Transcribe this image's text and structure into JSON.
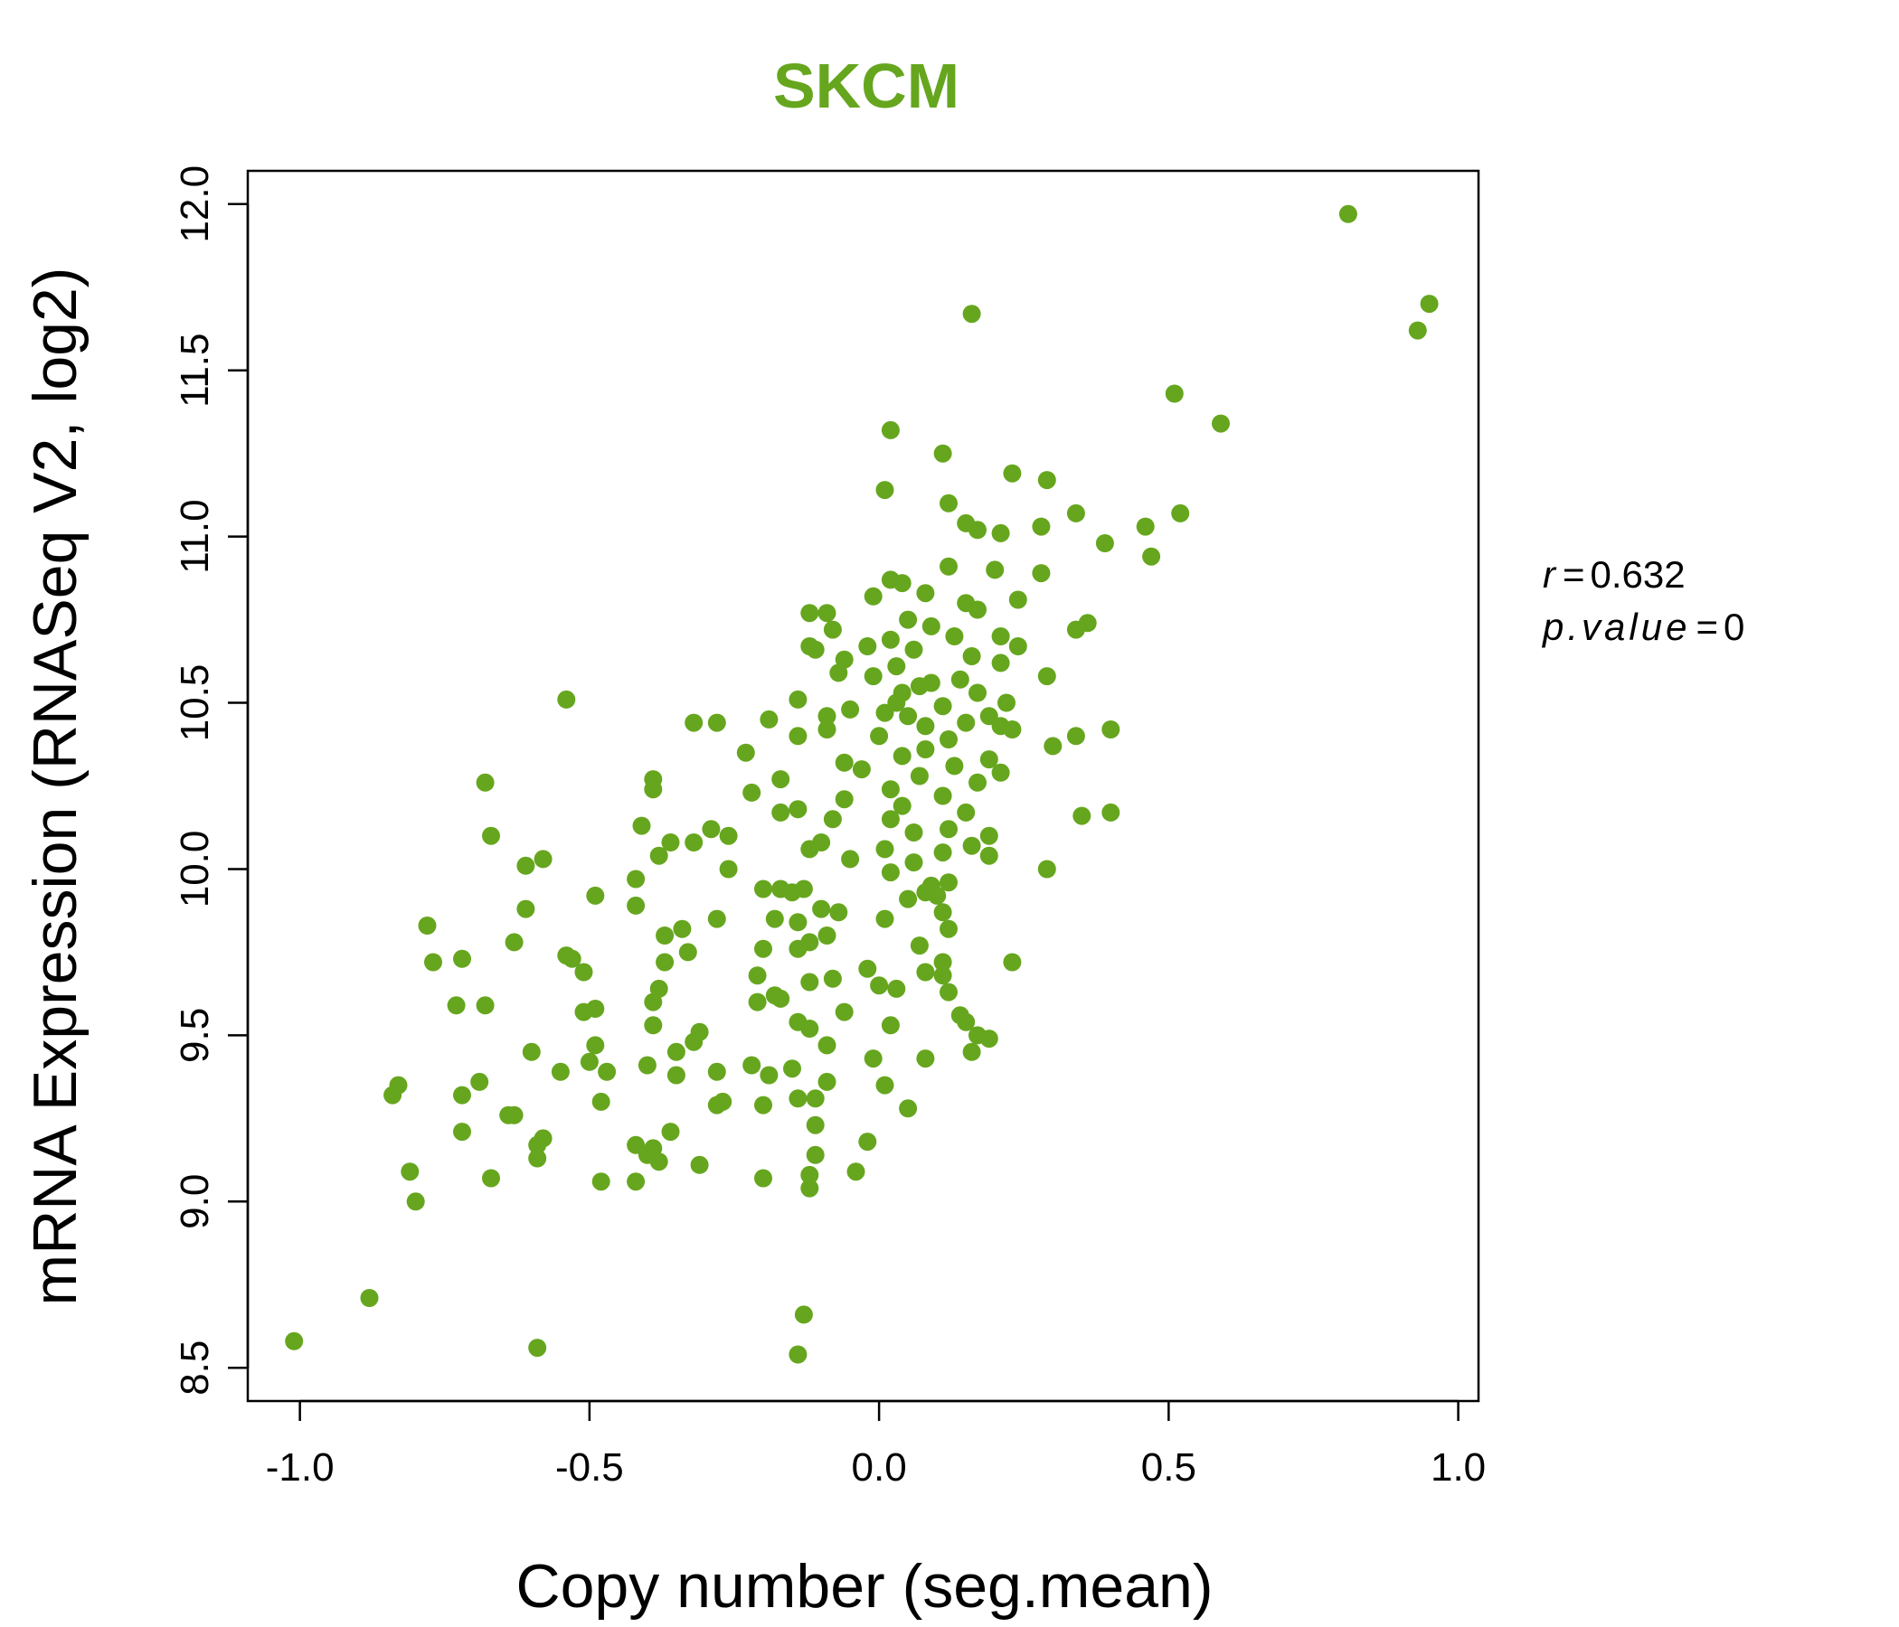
{
  "accent_color": "#66a61e",
  "chart_data": {
    "type": "scatter",
    "title": "SKCM",
    "xlabel": "Copy number (seg.mean)",
    "ylabel": "mRNA Expression (RNASeq V2, log2)",
    "xlim": [
      -1.09,
      1.035
    ],
    "ylim": [
      8.4,
      12.1
    ],
    "xticks": [
      -1.0,
      -0.5,
      0.0,
      0.5,
      1.0
    ],
    "xtick_labels": [
      "-1.0",
      "-0.5",
      "0.0",
      "0.5",
      "1.0"
    ],
    "yticks": [
      8.5,
      9.0,
      9.5,
      10.0,
      10.5,
      11.0,
      11.5,
      12.0
    ],
    "ytick_labels": [
      "8.5",
      "9.0",
      "9.5",
      "10.0",
      "10.5",
      "11.0",
      "11.5",
      "12.0"
    ],
    "grid": false,
    "marker_color": "#66a61e",
    "annotation": {
      "r_label": "r",
      "r_value": "0.632",
      "p_label": "p.value",
      "p_value": "0"
    },
    "points": [
      [
        -1.01,
        8.58
      ],
      [
        -0.88,
        8.71
      ],
      [
        -0.59,
        8.56
      ],
      [
        -0.13,
        8.66
      ],
      [
        -0.14,
        8.54
      ],
      [
        0.81,
        11.97
      ],
      [
        0.95,
        11.7
      ],
      [
        0.93,
        11.62
      ],
      [
        0.16,
        11.67
      ],
      [
        0.51,
        11.43
      ],
      [
        0.59,
        11.34
      ],
      [
        0.02,
        11.32
      ],
      [
        0.11,
        11.25
      ],
      [
        0.23,
        11.19
      ],
      [
        0.29,
        11.17
      ],
      [
        0.01,
        11.14
      ],
      [
        0.12,
        11.1
      ],
      [
        0.34,
        11.07
      ],
      [
        0.52,
        11.07
      ],
      [
        0.15,
        11.04
      ],
      [
        0.17,
        11.02
      ],
      [
        0.28,
        11.03
      ],
      [
        0.46,
        11.03
      ],
      [
        0.21,
        11.01
      ],
      [
        0.39,
        10.98
      ],
      [
        0.47,
        10.94
      ],
      [
        0.12,
        10.91
      ],
      [
        0.2,
        10.9
      ],
      [
        0.28,
        10.89
      ],
      [
        0.02,
        10.87
      ],
      [
        0.04,
        10.86
      ],
      [
        0.08,
        10.83
      ],
      [
        -0.01,
        10.82
      ],
      [
        0.15,
        10.8
      ],
      [
        0.24,
        10.81
      ],
      [
        0.17,
        10.78
      ],
      [
        -0.12,
        10.77
      ],
      [
        -0.09,
        10.77
      ],
      [
        0.05,
        10.75
      ],
      [
        0.36,
        10.74
      ],
      [
        0.34,
        10.72
      ],
      [
        -0.08,
        10.72
      ],
      [
        0.09,
        10.73
      ],
      [
        0.21,
        10.7
      ],
      [
        0.13,
        10.7
      ],
      [
        0.02,
        10.69
      ],
      [
        -0.02,
        10.67
      ],
      [
        0.24,
        10.67
      ],
      [
        0.06,
        10.66
      ],
      [
        -0.12,
        10.67
      ],
      [
        -0.11,
        10.66
      ],
      [
        0.16,
        10.64
      ],
      [
        -0.06,
        10.63
      ],
      [
        0.21,
        10.62
      ],
      [
        0.03,
        10.61
      ],
      [
        -0.07,
        10.59
      ],
      [
        0.29,
        10.58
      ],
      [
        -0.01,
        10.58
      ],
      [
        0.09,
        10.56
      ],
      [
        0.14,
        10.57
      ],
      [
        0.17,
        10.53
      ],
      [
        0.04,
        10.53
      ],
      [
        0.07,
        10.55
      ],
      [
        -0.14,
        10.51
      ],
      [
        0.22,
        10.5
      ],
      [
        -0.54,
        10.51
      ],
      [
        0.03,
        10.5
      ],
      [
        0.11,
        10.49
      ],
      [
        -0.05,
        10.48
      ],
      [
        0.01,
        10.47
      ],
      [
        0.19,
        10.46
      ],
      [
        -0.19,
        10.45
      ],
      [
        -0.09,
        10.46
      ],
      [
        0.05,
        10.46
      ],
      [
        0.21,
        10.43
      ],
      [
        -0.32,
        10.44
      ],
      [
        -0.28,
        10.44
      ],
      [
        0.08,
        10.43
      ],
      [
        0.15,
        10.44
      ],
      [
        0.23,
        10.42
      ],
      [
        0.4,
        10.42
      ],
      [
        -0.09,
        10.42
      ],
      [
        -0.14,
        10.4
      ],
      [
        0.34,
        10.4
      ],
      [
        0.0,
        10.4
      ],
      [
        0.12,
        10.39
      ],
      [
        0.3,
        10.37
      ],
      [
        -0.23,
        10.35
      ],
      [
        0.04,
        10.34
      ],
      [
        0.08,
        10.36
      ],
      [
        0.19,
        10.33
      ],
      [
        -0.06,
        10.32
      ],
      [
        0.13,
        10.31
      ],
      [
        -0.03,
        10.3
      ],
      [
        0.21,
        10.29
      ],
      [
        -0.39,
        10.27
      ],
      [
        0.07,
        10.28
      ],
      [
        -0.17,
        10.27
      ],
      [
        0.17,
        10.26
      ],
      [
        -0.68,
        10.26
      ],
      [
        -0.39,
        10.24
      ],
      [
        0.02,
        10.24
      ],
      [
        -0.22,
        10.23
      ],
      [
        0.11,
        10.22
      ],
      [
        -0.06,
        10.21
      ],
      [
        0.04,
        10.19
      ],
      [
        -0.14,
        10.18
      ],
      [
        0.35,
        10.16
      ],
      [
        0.4,
        10.17
      ],
      [
        -0.17,
        10.17
      ],
      [
        0.15,
        10.17
      ],
      [
        -0.08,
        10.15
      ],
      [
        0.02,
        10.15
      ],
      [
        -0.41,
        10.13
      ],
      [
        -0.29,
        10.12
      ],
      [
        0.12,
        10.12
      ],
      [
        0.06,
        10.11
      ],
      [
        -0.67,
        10.1
      ],
      [
        0.19,
        10.1
      ],
      [
        -0.26,
        10.1
      ],
      [
        -0.36,
        10.08
      ],
      [
        -0.32,
        10.08
      ],
      [
        -0.1,
        10.08
      ],
      [
        0.01,
        10.06
      ],
      [
        0.16,
        10.07
      ],
      [
        -0.12,
        10.06
      ],
      [
        -0.38,
        10.04
      ],
      [
        0.11,
        10.05
      ],
      [
        0.19,
        10.04
      ],
      [
        -0.58,
        10.03
      ],
      [
        -0.05,
        10.03
      ],
      [
        0.06,
        10.02
      ],
      [
        -0.61,
        10.01
      ],
      [
        -0.26,
        10.0
      ],
      [
        0.29,
        10.0
      ],
      [
        0.02,
        9.99
      ],
      [
        -0.42,
        9.97
      ],
      [
        0.12,
        9.96
      ],
      [
        0.09,
        9.95
      ],
      [
        -0.2,
        9.94
      ],
      [
        -0.17,
        9.94
      ],
      [
        -0.13,
        9.94
      ],
      [
        0.08,
        9.93
      ],
      [
        -0.49,
        9.92
      ],
      [
        0.1,
        9.92
      ],
      [
        -0.15,
        9.93
      ],
      [
        0.05,
        9.91
      ],
      [
        -0.42,
        9.89
      ],
      [
        -0.61,
        9.88
      ],
      [
        -0.1,
        9.88
      ],
      [
        -0.07,
        9.87
      ],
      [
        0.11,
        9.87
      ],
      [
        -0.28,
        9.85
      ],
      [
        -0.18,
        9.85
      ],
      [
        0.01,
        9.85
      ],
      [
        -0.14,
        9.84
      ],
      [
        -0.78,
        9.83
      ],
      [
        0.12,
        9.82
      ],
      [
        -0.34,
        9.82
      ],
      [
        -0.37,
        9.8
      ],
      [
        -0.09,
        9.8
      ],
      [
        -0.63,
        9.78
      ],
      [
        -0.12,
        9.78
      ],
      [
        0.07,
        9.77
      ],
      [
        -0.2,
        9.76
      ],
      [
        -0.14,
        9.76
      ],
      [
        -0.33,
        9.75
      ],
      [
        -0.54,
        9.74
      ],
      [
        -0.72,
        9.73
      ],
      [
        -0.53,
        9.73
      ],
      [
        -0.77,
        9.72
      ],
      [
        -0.37,
        9.72
      ],
      [
        0.11,
        9.72
      ],
      [
        0.23,
        9.72
      ],
      [
        -0.02,
        9.7
      ],
      [
        -0.51,
        9.69
      ],
      [
        0.08,
        9.69
      ],
      [
        -0.21,
        9.68
      ],
      [
        0.11,
        9.68
      ],
      [
        -0.08,
        9.67
      ],
      [
        -0.12,
        9.66
      ],
      [
        0.0,
        9.65
      ],
      [
        -0.38,
        9.64
      ],
      [
        0.03,
        9.64
      ],
      [
        0.12,
        9.63
      ],
      [
        -0.18,
        9.62
      ],
      [
        -0.17,
        9.61
      ],
      [
        -0.21,
        9.6
      ],
      [
        -0.39,
        9.6
      ],
      [
        -0.73,
        9.59
      ],
      [
        -0.68,
        9.59
      ],
      [
        -0.49,
        9.58
      ],
      [
        -0.51,
        9.57
      ],
      [
        -0.06,
        9.57
      ],
      [
        0.14,
        9.56
      ],
      [
        -0.14,
        9.54
      ],
      [
        0.15,
        9.54
      ],
      [
        -0.39,
        9.53
      ],
      [
        0.02,
        9.53
      ],
      [
        -0.12,
        9.52
      ],
      [
        -0.31,
        9.51
      ],
      [
        0.17,
        9.5
      ],
      [
        0.19,
        9.49
      ],
      [
        -0.32,
        9.48
      ],
      [
        -0.49,
        9.47
      ],
      [
        -0.09,
        9.47
      ],
      [
        -0.35,
        9.45
      ],
      [
        -0.6,
        9.45
      ],
      [
        0.16,
        9.45
      ],
      [
        -0.01,
        9.43
      ],
      [
        0.08,
        9.43
      ],
      [
        -0.5,
        9.42
      ],
      [
        -0.22,
        9.41
      ],
      [
        -0.4,
        9.41
      ],
      [
        -0.15,
        9.4
      ],
      [
        -0.55,
        9.39
      ],
      [
        -0.47,
        9.39
      ],
      [
        -0.28,
        9.39
      ],
      [
        -0.19,
        9.38
      ],
      [
        -0.35,
        9.38
      ],
      [
        -0.69,
        9.36
      ],
      [
        -0.09,
        9.36
      ],
      [
        -0.83,
        9.35
      ],
      [
        0.01,
        9.35
      ],
      [
        -0.84,
        9.32
      ],
      [
        -0.72,
        9.32
      ],
      [
        -0.11,
        9.31
      ],
      [
        -0.14,
        9.31
      ],
      [
        -0.48,
        9.3
      ],
      [
        -0.27,
        9.3
      ],
      [
        -0.28,
        9.29
      ],
      [
        -0.2,
        9.29
      ],
      [
        0.05,
        9.28
      ],
      [
        -0.63,
        9.26
      ],
      [
        -0.64,
        9.26
      ],
      [
        -0.11,
        9.23
      ],
      [
        -0.72,
        9.21
      ],
      [
        -0.36,
        9.21
      ],
      [
        -0.58,
        9.19
      ],
      [
        -0.42,
        9.17
      ],
      [
        -0.59,
        9.17
      ],
      [
        -0.39,
        9.16
      ],
      [
        -0.02,
        9.18
      ],
      [
        -0.4,
        9.14
      ],
      [
        -0.11,
        9.14
      ],
      [
        -0.59,
        9.13
      ],
      [
        -0.38,
        9.12
      ],
      [
        -0.31,
        9.11
      ],
      [
        -0.81,
        9.09
      ],
      [
        -0.04,
        9.09
      ],
      [
        -0.12,
        9.08
      ],
      [
        -0.67,
        9.07
      ],
      [
        -0.2,
        9.07
      ],
      [
        -0.48,
        9.06
      ],
      [
        -0.42,
        9.06
      ],
      [
        -0.12,
        9.04
      ],
      [
        -0.8,
        9.0
      ]
    ]
  }
}
